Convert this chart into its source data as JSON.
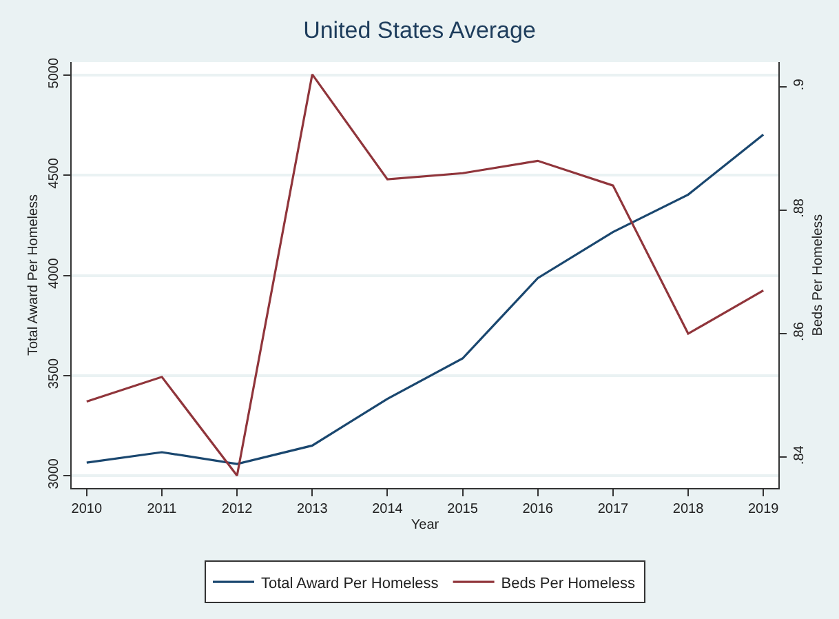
{
  "chart_data": {
    "type": "line",
    "title": "United States Average",
    "xlabel": "Year",
    "ylabel": "Total Award Per Homeless",
    "y2label": "Beds Per Homeless",
    "x": [
      2010,
      2011,
      2012,
      2013,
      2014,
      2015,
      2016,
      2017,
      2018,
      2019
    ],
    "series": [
      {
        "name": "Total Award Per Homeless",
        "color": "#1a476f",
        "values": [
          3066,
          3118,
          3059,
          3151,
          3384,
          3586,
          3987,
          4217,
          4404,
          4704
        ]
      },
      {
        "name": "Beds Per Homeless",
        "color": "#90353b",
        "axis": "y2",
        "values": [
          0.849,
          0.853,
          0.837,
          0.902,
          0.885,
          0.886,
          0.888,
          0.884,
          0.86,
          0.867
        ]
      }
    ],
    "xlim": [
      2009.8,
      2019.2
    ],
    "xticks": [
      2010,
      2011,
      2012,
      2013,
      2014,
      2015,
      2016,
      2017,
      2018,
      2019
    ],
    "ylim": [
      2939,
      5066
    ],
    "yticks": [
      3000,
      3500,
      4000,
      4500,
      5000
    ],
    "y2lim": [
      0.835,
      0.904
    ],
    "y2ticks": [
      {
        "value": 0.84,
        "label": ".84"
      },
      {
        "value": 0.86,
        "label": ".86"
      },
      {
        "value": 0.88,
        "label": ".88"
      },
      {
        "value": 0.9,
        "label": ".9"
      }
    ],
    "grid": "y",
    "legend": "bottom",
    "marker": "none",
    "line_style": "solid"
  }
}
